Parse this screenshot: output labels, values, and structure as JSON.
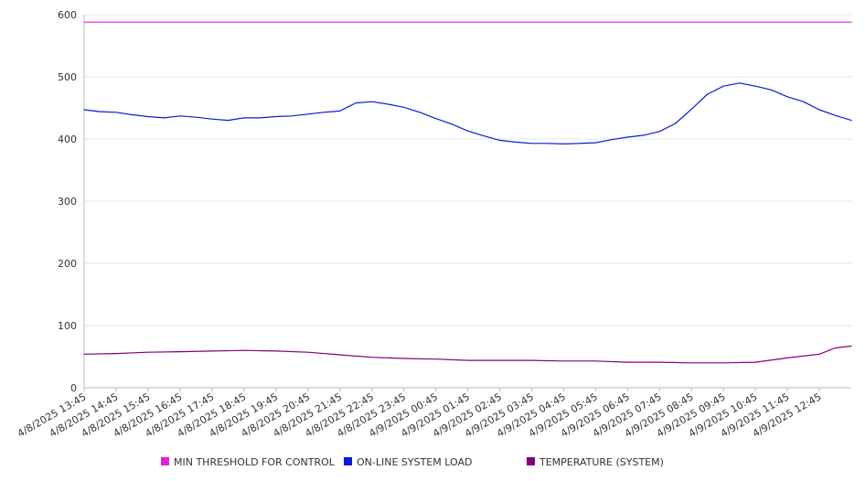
{
  "chart_data": {
    "type": "line",
    "title": "",
    "xlabel": "",
    "ylabel": "",
    "ylim": [
      0,
      600
    ],
    "yticks": [
      0,
      100,
      200,
      300,
      400,
      500,
      600
    ],
    "x_start": "4/8/2025 13:45",
    "x_end": "4/9/2025 13:45",
    "x_tick_labels": [
      "4/8/2025 13:45",
      "4/8/2025 14:45",
      "4/8/2025 15:45",
      "4/8/2025 16:45",
      "4/8/2025 17:45",
      "4/8/2025 18:45",
      "4/8/2025 19:45",
      "4/8/2025 20:45",
      "4/8/2025 21:45",
      "4/8/2025 22:45",
      "4/8/2025 23:45",
      "4/9/2025 00:45",
      "4/9/2025 01:45",
      "4/9/2025 02:45",
      "4/9/2025 03:45",
      "4/9/2025 04:45",
      "4/9/2025 05:45",
      "4/9/2025 06:45",
      "4/9/2025 07:45",
      "4/9/2025 08:45",
      "4/9/2025 09:45",
      "4/9/2025 10:45",
      "4/9/2025 11:45",
      "4/9/2025 12:45"
    ],
    "grid": true,
    "legend_position": "bottom",
    "series": [
      {
        "name": "MIN THRESHOLD FOR CONTROL",
        "color": "#e020e0",
        "points": [
          [
            "4/8/2025 13:45",
            588
          ],
          [
            "4/9/2025 13:45",
            588
          ]
        ]
      },
      {
        "name": "ON-LINE SYSTEM LOAD",
        "color": "#0a1ad8",
        "points": [
          [
            "4/8/2025 13:45",
            447
          ],
          [
            "4/8/2025 14:15",
            444
          ],
          [
            "4/8/2025 14:45",
            443
          ],
          [
            "4/8/2025 15:15",
            439
          ],
          [
            "4/8/2025 15:45",
            436
          ],
          [
            "4/8/2025 16:15",
            434
          ],
          [
            "4/8/2025 16:45",
            437
          ],
          [
            "4/8/2025 17:15",
            435
          ],
          [
            "4/8/2025 17:45",
            432
          ],
          [
            "4/8/2025 18:15",
            430
          ],
          [
            "4/8/2025 18:45",
            434
          ],
          [
            "4/8/2025 19:15",
            434
          ],
          [
            "4/8/2025 19:45",
            436
          ],
          [
            "4/8/2025 20:15",
            437
          ],
          [
            "4/8/2025 20:45",
            440
          ],
          [
            "4/8/2025 21:15",
            443
          ],
          [
            "4/8/2025 21:45",
            445
          ],
          [
            "4/8/2025 22:15",
            458
          ],
          [
            "4/8/2025 22:45",
            460
          ],
          [
            "4/8/2025 23:15",
            456
          ],
          [
            "4/8/2025 23:45",
            451
          ],
          [
            "4/9/2025 00:15",
            443
          ],
          [
            "4/9/2025 00:45",
            433
          ],
          [
            "4/9/2025 01:15",
            424
          ],
          [
            "4/9/2025 01:45",
            413
          ],
          [
            "4/9/2025 02:15",
            405
          ],
          [
            "4/9/2025 02:45",
            398
          ],
          [
            "4/9/2025 03:15",
            395
          ],
          [
            "4/9/2025 03:45",
            393
          ],
          [
            "4/9/2025 04:15",
            393
          ],
          [
            "4/9/2025 04:45",
            392
          ],
          [
            "4/9/2025 05:15",
            393
          ],
          [
            "4/9/2025 05:45",
            394
          ],
          [
            "4/9/2025 06:15",
            399
          ],
          [
            "4/9/2025 06:45",
            403
          ],
          [
            "4/9/2025 07:15",
            406
          ],
          [
            "4/9/2025 07:45",
            412
          ],
          [
            "4/9/2025 08:15",
            425
          ],
          [
            "4/9/2025 08:45",
            448
          ],
          [
            "4/9/2025 09:15",
            472
          ],
          [
            "4/9/2025 09:45",
            485
          ],
          [
            "4/9/2025 10:15",
            490
          ],
          [
            "4/9/2025 10:45",
            485
          ],
          [
            "4/9/2025 11:15",
            479
          ],
          [
            "4/9/2025 11:45",
            468
          ],
          [
            "4/9/2025 12:15",
            460
          ],
          [
            "4/9/2025 12:45",
            447
          ],
          [
            "4/9/2025 13:15",
            438
          ],
          [
            "4/9/2025 13:45",
            430
          ]
        ]
      },
      {
        "name": "TEMPERATURE (SYSTEM)",
        "color": "#800080",
        "points": [
          [
            "4/8/2025 13:45",
            54
          ],
          [
            "4/8/2025 14:45",
            55
          ],
          [
            "4/8/2025 15:45",
            57
          ],
          [
            "4/8/2025 16:45",
            58
          ],
          [
            "4/8/2025 17:45",
            59
          ],
          [
            "4/8/2025 18:45",
            60
          ],
          [
            "4/8/2025 19:45",
            59
          ],
          [
            "4/8/2025 20:45",
            57
          ],
          [
            "4/8/2025 21:45",
            53
          ],
          [
            "4/8/2025 22:45",
            49
          ],
          [
            "4/8/2025 23:45",
            47
          ],
          [
            "4/9/2025 00:45",
            46
          ],
          [
            "4/9/2025 01:45",
            44
          ],
          [
            "4/9/2025 02:45",
            44
          ],
          [
            "4/9/2025 03:45",
            44
          ],
          [
            "4/9/2025 04:45",
            43
          ],
          [
            "4/9/2025 05:45",
            43
          ],
          [
            "4/9/2025 06:45",
            41
          ],
          [
            "4/9/2025 07:45",
            41
          ],
          [
            "4/9/2025 08:45",
            40
          ],
          [
            "4/9/2025 09:45",
            40
          ],
          [
            "4/9/2025 10:45",
            41
          ],
          [
            "4/9/2025 11:45",
            48
          ],
          [
            "4/9/2025 12:45",
            54
          ],
          [
            "4/9/2025 13:15",
            64
          ],
          [
            "4/9/2025 13:45",
            67
          ]
        ]
      }
    ]
  }
}
